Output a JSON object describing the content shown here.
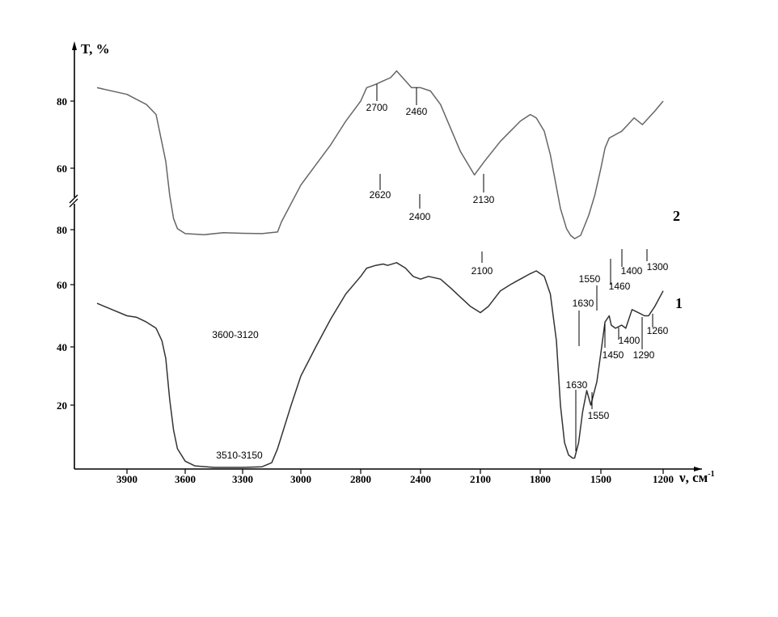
{
  "chart_data": {
    "type": "line",
    "x_axis": {
      "label": "ν, см",
      "label_superscript": "-1",
      "ticks": [
        3900,
        3600,
        3300,
        3000,
        2800,
        2400,
        2100,
        1800,
        1500,
        1200
      ],
      "reversed": true
    },
    "y_axis": {
      "label": "T, %",
      "upper_panel_ticks": [
        80,
        60
      ],
      "lower_panel_ticks": [
        80,
        60,
        40,
        20
      ],
      "axis_break": true
    },
    "grid": false,
    "series": [
      {
        "name": "2",
        "color": "#666666",
        "points": [
          [
            4000,
            84
          ],
          [
            3900,
            82
          ],
          [
            3800,
            79
          ],
          [
            3750,
            76
          ],
          [
            3700,
            62
          ],
          [
            3680,
            52
          ],
          [
            3660,
            45
          ],
          [
            3640,
            42
          ],
          [
            3600,
            40.5
          ],
          [
            3500,
            40.2
          ],
          [
            3400,
            40.8
          ],
          [
            3300,
            40.6
          ],
          [
            3200,
            40.5
          ],
          [
            3120,
            41
          ],
          [
            3100,
            44
          ],
          [
            3000,
            55
          ],
          [
            2900,
            67
          ],
          [
            2850,
            74
          ],
          [
            2800,
            80
          ],
          [
            2760,
            84
          ],
          [
            2700,
            85
          ],
          [
            2650,
            86
          ],
          [
            2600,
            87
          ],
          [
            2560,
            89
          ],
          [
            2500,
            86
          ],
          [
            2460,
            84
          ],
          [
            2400,
            84
          ],
          [
            2350,
            83
          ],
          [
            2300,
            79
          ],
          [
            2250,
            72
          ],
          [
            2200,
            65
          ],
          [
            2130,
            58
          ],
          [
            2080,
            62
          ],
          [
            2000,
            68
          ],
          [
            1950,
            71
          ],
          [
            1900,
            74
          ],
          [
            1850,
            76
          ],
          [
            1820,
            75
          ],
          [
            1780,
            71
          ],
          [
            1750,
            64
          ],
          [
            1700,
            48
          ],
          [
            1670,
            42
          ],
          [
            1650,
            40
          ],
          [
            1630,
            39
          ],
          [
            1600,
            40
          ],
          [
            1580,
            43
          ],
          [
            1560,
            46
          ],
          [
            1550,
            48
          ],
          [
            1530,
            52
          ],
          [
            1500,
            60
          ],
          [
            1480,
            66
          ],
          [
            1460,
            69
          ],
          [
            1430,
            70
          ],
          [
            1400,
            71
          ],
          [
            1370,
            73
          ],
          [
            1340,
            75
          ],
          [
            1320,
            74
          ],
          [
            1300,
            73
          ],
          [
            1270,
            75
          ],
          [
            1240,
            77
          ],
          [
            1200,
            80
          ]
        ]
      },
      {
        "name": "1",
        "color": "#333333",
        "points": [
          [
            4000,
            54
          ],
          [
            3950,
            52
          ],
          [
            3900,
            50
          ],
          [
            3850,
            49.5
          ],
          [
            3800,
            48
          ],
          [
            3750,
            46
          ],
          [
            3720,
            42
          ],
          [
            3700,
            36
          ],
          [
            3680,
            22
          ],
          [
            3660,
            12
          ],
          [
            3640,
            6
          ],
          [
            3600,
            2
          ],
          [
            3550,
            0.5
          ],
          [
            3450,
            0
          ],
          [
            3300,
            0
          ],
          [
            3200,
            0.2
          ],
          [
            3150,
            1.5
          ],
          [
            3120,
            6
          ],
          [
            3050,
            20
          ],
          [
            3000,
            30
          ],
          [
            2950,
            40
          ],
          [
            2900,
            49
          ],
          [
            2850,
            57
          ],
          [
            2800,
            63
          ],
          [
            2760,
            66
          ],
          [
            2700,
            67
          ],
          [
            2650,
            67.5
          ],
          [
            2620,
            67
          ],
          [
            2560,
            68
          ],
          [
            2500,
            66
          ],
          [
            2450,
            63
          ],
          [
            2400,
            62
          ],
          [
            2360,
            63
          ],
          [
            2300,
            62
          ],
          [
            2250,
            59
          ],
          [
            2200,
            56
          ],
          [
            2150,
            53
          ],
          [
            2100,
            51
          ],
          [
            2060,
            53
          ],
          [
            2000,
            58
          ],
          [
            1950,
            60
          ],
          [
            1900,
            62
          ],
          [
            1850,
            64
          ],
          [
            1820,
            65
          ],
          [
            1780,
            63
          ],
          [
            1750,
            57
          ],
          [
            1720,
            42
          ],
          [
            1700,
            20
          ],
          [
            1680,
            8
          ],
          [
            1660,
            4
          ],
          [
            1640,
            3
          ],
          [
            1630,
            3
          ],
          [
            1610,
            8
          ],
          [
            1590,
            18
          ],
          [
            1570,
            25
          ],
          [
            1550,
            20
          ],
          [
            1520,
            28
          ],
          [
            1500,
            38
          ],
          [
            1480,
            48
          ],
          [
            1460,
            50
          ],
          [
            1450,
            47
          ],
          [
            1430,
            46
          ],
          [
            1400,
            47
          ],
          [
            1380,
            46
          ],
          [
            1350,
            52
          ],
          [
            1320,
            51
          ],
          [
            1290,
            50
          ],
          [
            1270,
            50
          ],
          [
            1260,
            51
          ],
          [
            1240,
            53
          ],
          [
            1200,
            58
          ]
        ]
      }
    ],
    "annotations": [
      {
        "text": "2700",
        "series": "2"
      },
      {
        "text": "2460",
        "series": "2"
      },
      {
        "text": "2130",
        "series": "2"
      },
      {
        "text": "3600-3120",
        "series": "2"
      },
      {
        "text": "1630",
        "series": "2"
      },
      {
        "text": "1550",
        "series": "2"
      },
      {
        "text": "1460",
        "series": "2"
      },
      {
        "text": "1400",
        "series": "2"
      },
      {
        "text": "1300",
        "series": "2"
      },
      {
        "text": "2620",
        "series": "1"
      },
      {
        "text": "2400",
        "series": "1"
      },
      {
        "text": "2100",
        "series": "1"
      },
      {
        "text": "3510-3150",
        "series": "1"
      },
      {
        "text": "1630",
        "series": "1"
      },
      {
        "text": "1550",
        "series": "1"
      },
      {
        "text": "1450",
        "series": "1"
      },
      {
        "text": "1400",
        "series": "1"
      },
      {
        "text": "1290",
        "series": "1"
      },
      {
        "text": "1260",
        "series": "1"
      }
    ]
  }
}
